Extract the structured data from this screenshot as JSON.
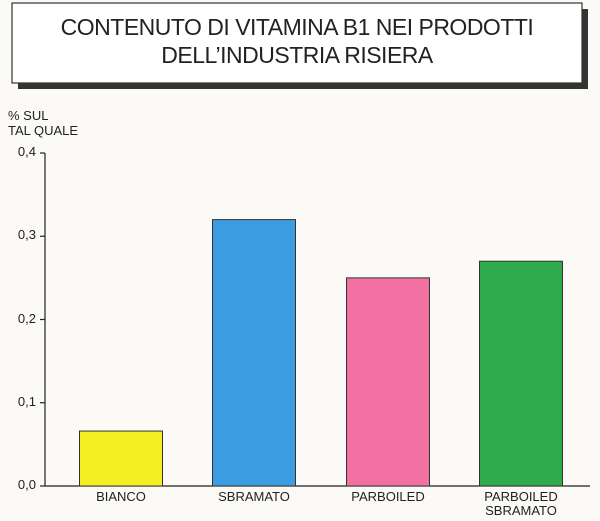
{
  "chart_data": {
    "type": "bar",
    "title": [
      "CONTENUTO DI VITAMINA B1 NEI PRODOTTI",
      "DELL’INDUSTRIA RISIERA"
    ],
    "y_label": [
      "% SUL",
      "TAL QUALE"
    ],
    "categories": [
      "BIANCO",
      "SBRAMATO",
      "PARBOILED",
      "PARBOILED SBRAMATO"
    ],
    "values": [
      0.066,
      0.32,
      0.25,
      0.27
    ],
    "colors": [
      "#f4ee22",
      "#3d9de2",
      "#f270a2",
      "#2faa4c"
    ],
    "ylim": [
      0,
      0.4
    ],
    "yticks": [
      {
        "value": 0,
        "label": "0,0"
      },
      {
        "value": 0.1,
        "label": "0,1"
      },
      {
        "value": 0.2,
        "label": "0,2"
      },
      {
        "value": 0.3,
        "label": "0,3"
      },
      {
        "value": 0.4,
        "label": "0,4"
      }
    ]
  }
}
